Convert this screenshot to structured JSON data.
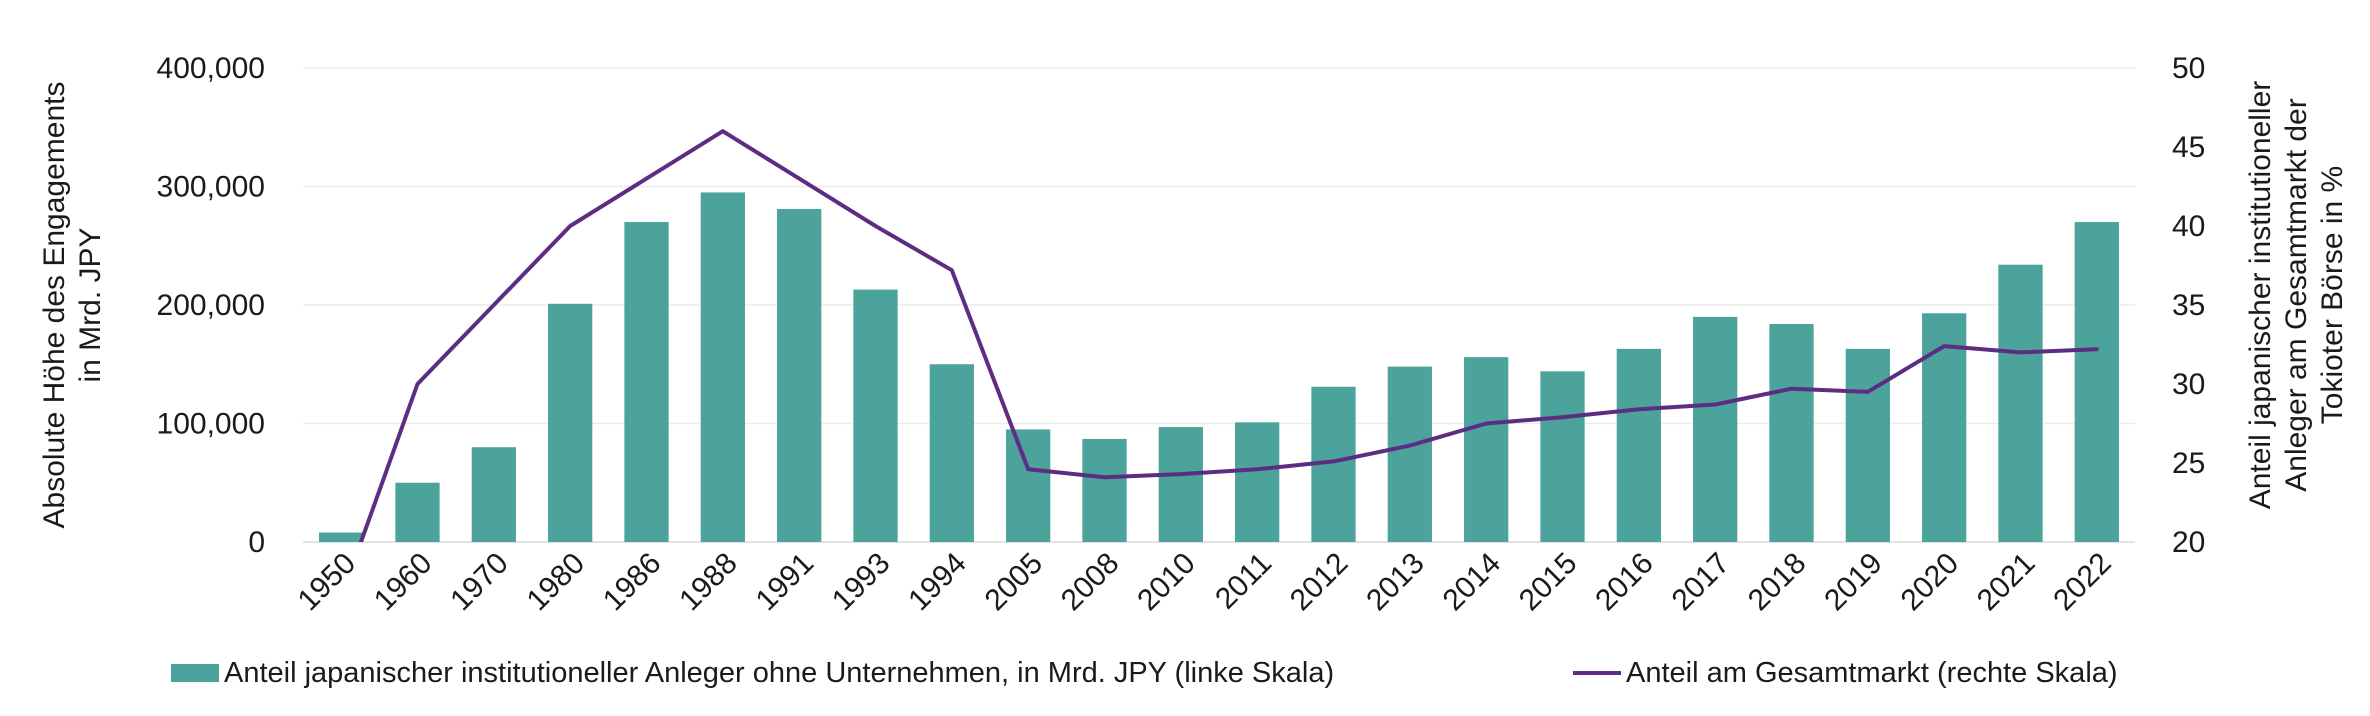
{
  "chart_data": {
    "type": "bar",
    "categories": [
      "1950",
      "1960",
      "1970",
      "1980",
      "1986",
      "1988",
      "1991",
      "1993",
      "1994",
      "2005",
      "2008",
      "2010",
      "2011",
      "2012",
      "2013",
      "2014",
      "2015",
      "2016",
      "2017",
      "2018",
      "2019",
      "2020",
      "2021",
      "2022"
    ],
    "series": [
      {
        "name": "Anteil japanischer institutioneller Anleger ohne Unternehmen, in Mrd. JPY (linke Skala)",
        "type": "bar",
        "axis": "left",
        "color": "#4ba39c",
        "values": [
          8000,
          50000,
          80000,
          201000,
          270000,
          295000,
          281000,
          213000,
          150000,
          95000,
          87000,
          97000,
          101000,
          131000,
          148000,
          156000,
          144000,
          163000,
          190000,
          184000,
          163000,
          193000,
          234000,
          270000
        ]
      },
      {
        "name": "Anteil am Gesamtmarkt (rechte Skala)",
        "type": "line",
        "axis": "right",
        "color": "#5c2d82",
        "values": [
          16.5,
          30,
          35,
          40,
          43,
          46,
          43,
          40,
          37.2,
          24.6,
          24.1,
          24.3,
          24.6,
          25.1,
          26.1,
          27.5,
          27.9,
          28.4,
          28.7,
          29.7,
          29.5,
          32.4,
          32.0,
          32.2
        ]
      }
    ],
    "left_axis": {
      "label": "Absolute Höhe des Engagements in Mrd. JPY",
      "label_lines": [
        "Absolute Höhe des Engagements",
        "in Mrd. JPY"
      ],
      "ylim": [
        0,
        400000
      ],
      "ticks": [
        0,
        100000,
        200000,
        300000,
        400000
      ],
      "tick_labels": [
        "0",
        "100,000",
        "200,000",
        "300,000",
        "400,000"
      ]
    },
    "right_axis": {
      "label": "Anteil japanischer institutioneller Anleger am Gesamtmarkt der Tokioter Börse in %",
      "label_lines": [
        "Anteil japanischer institutioneller",
        "Anleger am Gesamtmarkt der",
        "Tokioter Börse in %"
      ],
      "ylim": [
        20,
        50
      ],
      "ticks": [
        20,
        25,
        30,
        35,
        40,
        45,
        50
      ],
      "tick_labels": [
        "20",
        "25",
        "30",
        "35",
        "40",
        "45",
        "50"
      ]
    },
    "grid": true,
    "legend": {
      "position": "bottom",
      "entries": [
        {
          "label": "Anteil japanischer institutioneller Anleger ohne Unternehmen, in Mrd. JPY (linke Skala)",
          "marker": "bar",
          "color": "#4ba39c"
        },
        {
          "label": "Anteil am Gesamtmarkt (rechte Skala)",
          "marker": "line",
          "color": "#5c2d82"
        }
      ]
    }
  }
}
